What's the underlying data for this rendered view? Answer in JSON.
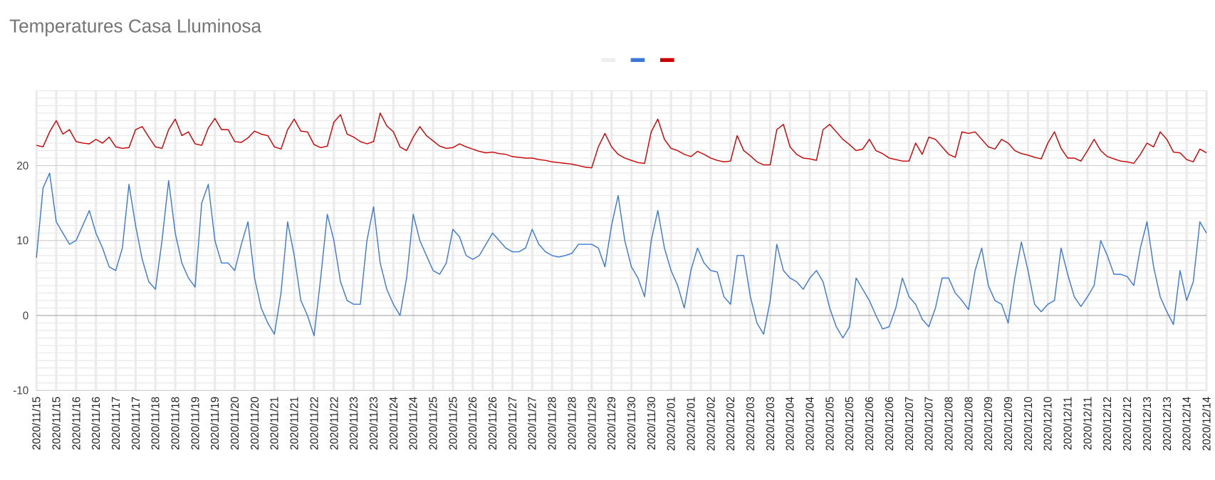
{
  "chart_data": {
    "type": "line",
    "title": "Temperatures Casa Lluminosa",
    "categories": [
      "2020/11/15",
      null,
      null,
      "2020/11/15",
      null,
      null,
      "2020/11/16",
      null,
      null,
      "2020/11/16",
      null,
      null,
      "2020/11/17",
      null,
      null,
      "2020/11/17",
      null,
      null,
      "2020/11/18",
      null,
      null,
      "2020/11/18",
      null,
      null,
      "2020/11/19",
      null,
      null,
      "2020/11/19",
      null,
      null,
      "2020/11/20",
      null,
      null,
      "2020/11/20",
      null,
      null,
      "2020/11/21",
      null,
      null,
      "2020/11/21",
      null,
      null,
      "2020/11/22",
      null,
      null,
      "2020/11/22",
      null,
      null,
      "2020/11/23",
      null,
      null,
      "2020/11/23",
      null,
      null,
      "2020/11/24",
      null,
      null,
      "2020/11/24",
      null,
      null,
      "2020/11/25",
      null,
      null,
      "2020/11/25",
      null,
      null,
      "2020/11/26",
      null,
      null,
      "2020/11/26",
      null,
      null,
      "2020/11/27",
      null,
      null,
      "2020/11/27",
      null,
      null,
      "2020/11/28",
      null,
      null,
      "2020/11/28",
      null,
      null,
      "2020/11/29",
      null,
      null,
      "2020/11/29",
      null,
      null,
      "2020/11/30",
      null,
      null,
      "2020/11/30",
      null,
      null,
      "2020/12/01",
      null,
      null,
      "2020/12/01",
      null,
      null,
      "2020/12/02",
      null,
      null,
      "2020/12/02",
      null,
      null,
      "2020/12/03",
      null,
      null,
      "2020/12/03",
      null,
      null,
      "2020/12/04",
      null,
      null,
      "2020/12/04",
      null,
      null,
      "2020/12/05",
      null,
      null,
      "2020/12/05",
      null,
      null,
      "2020/12/06",
      null,
      null,
      "2020/12/06",
      null,
      null,
      "2020/12/07",
      null,
      null,
      "2020/12/07",
      null,
      null,
      "2020/12/08",
      null,
      null,
      "2020/12/08",
      null,
      null,
      "2020/12/09",
      null,
      null,
      "2020/12/09",
      null,
      null,
      "2020/12/10",
      null,
      null,
      "2020/12/10",
      null,
      null,
      "2020/12/11",
      null,
      null,
      "2020/12/11",
      null,
      null,
      "2020/12/12",
      null,
      null,
      "2020/12/12",
      null,
      null,
      "2020/12/13",
      null,
      null,
      "2020/12/13",
      null,
      null,
      "2020/12/14",
      null,
      null,
      "2020/12/14"
    ],
    "series": [
      {
        "color": "#eeeeee",
        "values": [
          null,
          null,
          null,
          null,
          null,
          null,
          null,
          null,
          null,
          null,
          null,
          null,
          null,
          null,
          null,
          null,
          null,
          null,
          null,
          null,
          null,
          null,
          null,
          null,
          null,
          null,
          null,
          null,
          null,
          null,
          null,
          null,
          null,
          null,
          null,
          null,
          null,
          null,
          null,
          null,
          null,
          null,
          null,
          null,
          null,
          null,
          null,
          null,
          null,
          null,
          null,
          null,
          null,
          null,
          null,
          null,
          null,
          null,
          null,
          null,
          null,
          null,
          null,
          null,
          null,
          null,
          null,
          null,
          null,
          null,
          null,
          null,
          null,
          null,
          null,
          null,
          null,
          null,
          null,
          null,
          null,
          null,
          null,
          null,
          null,
          null,
          null,
          null,
          null,
          null,
          null,
          null,
          null,
          null,
          null,
          null,
          null,
          null,
          null,
          null,
          null,
          null,
          null,
          null,
          null,
          null,
          null,
          null,
          null,
          null,
          null,
          null,
          null,
          null,
          null,
          null,
          null,
          null,
          null,
          null,
          null,
          null,
          null,
          null,
          null,
          null,
          null,
          null,
          null,
          null,
          null,
          null,
          null,
          null,
          null,
          null,
          null,
          null,
          null,
          null,
          null,
          null,
          null,
          null,
          null,
          null,
          null,
          null,
          null,
          null,
          null,
          null,
          null,
          null,
          null,
          null,
          null,
          null,
          null,
          null,
          null,
          null,
          null,
          null,
          null,
          null,
          null,
          null,
          null,
          null,
          null,
          null,
          null,
          null,
          null,
          null,
          null,
          null
        ]
      },
      {
        "color": "#3c78d8",
        "values": [
          7.7,
          17,
          19,
          12.5,
          11,
          9.5,
          10,
          12,
          14,
          11,
          9,
          6.5,
          6,
          9,
          17.5,
          12,
          7.5,
          4.5,
          3.5,
          10,
          18,
          11,
          7,
          5,
          3.8,
          15,
          17.5,
          10,
          7,
          7,
          6,
          9.5,
          12.5,
          5,
          1,
          -1,
          -2.5,
          3,
          12.5,
          8,
          2,
          0,
          -2.7,
          5,
          13.5,
          10,
          4.5,
          2,
          1.5,
          1.5,
          10,
          14.5,
          7,
          3.5,
          1.5,
          0,
          5,
          13.5,
          10,
          8,
          6,
          5.5,
          7,
          11.5,
          10.5,
          8,
          7.5,
          8,
          9.5,
          11,
          10,
          9,
          8.5,
          8.5,
          9,
          11.5,
          9.5,
          8.5,
          8,
          7.8,
          8,
          8.3,
          9.5,
          9.5,
          9.5,
          9,
          6.5,
          12,
          16,
          10,
          6.5,
          5,
          2.5,
          10,
          14,
          9,
          6,
          4,
          1,
          6,
          9,
          7,
          6,
          5.8,
          2.5,
          1.5,
          8,
          8,
          2.5,
          -1,
          -2.5,
          2,
          9.5,
          6,
          5,
          4.5,
          3.5,
          5,
          6,
          4.5,
          1,
          -1.5,
          -3,
          -1.5,
          5,
          3.5,
          2,
          0,
          -1.8,
          -1.5,
          1,
          5,
          2.5,
          1.5,
          -0.5,
          -1.5,
          1,
          5,
          5,
          3,
          2,
          0.8,
          6,
          9,
          4,
          2,
          1.5,
          -1,
          5,
          9.8,
          6,
          1.5,
          0.5,
          1.5,
          2,
          9,
          5.5,
          2.5,
          1.2,
          2.5,
          4,
          10,
          8,
          5.5,
          5.5,
          5.2,
          4,
          9,
          12.5,
          6.5,
          2.5,
          0.5,
          -1.2,
          6,
          2,
          4.5,
          12.5,
          11
        ]
      },
      {
        "color": "#cc0000",
        "values": [
          22.7,
          22.5,
          24.5,
          26,
          24.2,
          24.8,
          23.2,
          23,
          22.9,
          23.5,
          23,
          23.8,
          22.5,
          22.3,
          22.4,
          24.8,
          25.2,
          23.8,
          22.5,
          22.3,
          24.8,
          26.2,
          24,
          24.5,
          22.9,
          22.7,
          25,
          26.3,
          24.8,
          24.8,
          23.2,
          23.1,
          23.7,
          24.6,
          24.2,
          24,
          22.5,
          22.2,
          24.8,
          26.2,
          24.6,
          24.5,
          22.8,
          22.4,
          22.6,
          25.8,
          26.8,
          24.2,
          23.8,
          23.2,
          22.9,
          23.2,
          27,
          25.3,
          24.5,
          22.5,
          22,
          23.8,
          25.2,
          24,
          23.3,
          22.6,
          22.3,
          22.4,
          22.9,
          22.5,
          22.2,
          21.9,
          21.7,
          21.8,
          21.6,
          21.5,
          21.2,
          21.1,
          21,
          21,
          20.8,
          20.7,
          20.5,
          20.4,
          20.3,
          20.2,
          20,
          19.8,
          19.7,
          22.5,
          24.3,
          22.5,
          21.5,
          21,
          20.7,
          20.4,
          20.3,
          24.5,
          26.2,
          23.5,
          22.3,
          22,
          21.5,
          21.2,
          21.9,
          21.5,
          21,
          20.7,
          20.5,
          20.6,
          24,
          22,
          21.3,
          20.5,
          20.1,
          20.1,
          24.8,
          25.5,
          22.5,
          21.5,
          21,
          20.9,
          20.7,
          24.8,
          25.5,
          24.5,
          23.5,
          22.8,
          22,
          22.2,
          23.5,
          22,
          21.6,
          21,
          20.8,
          20.6,
          20.6,
          23,
          21.5,
          23.8,
          23.5,
          22.5,
          21.5,
          21.1,
          24.5,
          24.3,
          24.5,
          23.5,
          22.5,
          22.2,
          23.5,
          23,
          22,
          21.6,
          21.4,
          21.1,
          20.9,
          23,
          24.5,
          22.3,
          21,
          21,
          20.6,
          22,
          23.5,
          22,
          21.2,
          20.9,
          20.6,
          20.5,
          20.3,
          21.5,
          23,
          22.5,
          24.5,
          23.5,
          21.8,
          21.7,
          20.8,
          20.5,
          22.2,
          21.7
        ]
      }
    ],
    "ylim": [
      -10,
      30
    ],
    "yticks": [
      -10,
      0,
      10,
      20
    ],
    "grid": true
  }
}
